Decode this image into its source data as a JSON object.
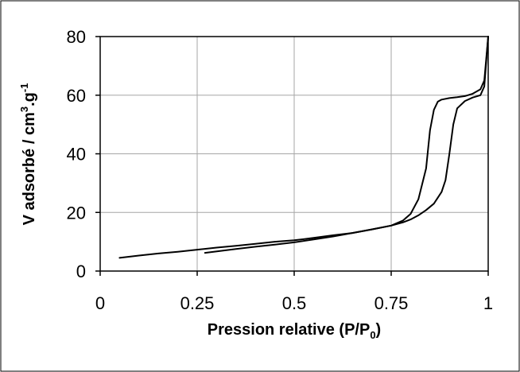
{
  "chart_data": {
    "type": "line",
    "title": "",
    "xlabel": "Pression relative (P/P",
    "xlabel_sub": "0",
    "xlabel_end": ")",
    "ylabel": "V adsorbé / cm",
    "ylabel_sup1": "3",
    "ylabel_mid": ".g",
    "ylabel_sup2": "-1",
    "xlim": [
      0,
      1
    ],
    "ylim": [
      0,
      80
    ],
    "grid": true,
    "legend": "none",
    "x_ticks": [
      0,
      0.25,
      0.5,
      0.75,
      1
    ],
    "x_tick_labels": [
      "0",
      "0.25",
      "0.5",
      "0.75",
      "1"
    ],
    "y_ticks": [
      0,
      20,
      40,
      60,
      80
    ],
    "y_tick_labels": [
      "0",
      "20",
      "40",
      "60",
      "80"
    ],
    "line_color": "#000000",
    "series": [
      {
        "x": [
          0.05,
          0.1,
          0.15,
          0.2,
          0.25,
          0.3,
          0.35,
          0.4,
          0.45,
          0.5,
          0.55,
          0.6,
          0.65,
          0.7,
          0.75,
          0.78,
          0.8,
          0.82,
          0.84,
          0.85,
          0.86,
          0.87,
          0.88,
          0.9,
          0.92,
          0.94,
          0.96,
          0.98,
          0.99,
          1.0
        ],
        "values": [
          4.5,
          5.3,
          6.0,
          6.6,
          7.3,
          8.0,
          8.6,
          9.3,
          10.0,
          10.5,
          11.3,
          12.2,
          13.0,
          14.2,
          15.5,
          17.2,
          19.5,
          24.5,
          35.0,
          48.0,
          55.0,
          57.8,
          58.5,
          59.0,
          59.3,
          59.7,
          60.5,
          62.0,
          65.0,
          80.0
        ]
      },
      {
        "x": [
          0.27,
          0.35,
          0.4,
          0.45,
          0.5,
          0.55,
          0.6,
          0.65,
          0.7,
          0.75,
          0.78,
          0.8,
          0.82,
          0.84,
          0.86,
          0.88,
          0.89,
          0.9,
          0.91,
          0.92,
          0.94,
          0.96,
          0.98,
          0.99,
          1.0
        ],
        "values": [
          6.2,
          7.5,
          8.3,
          9.0,
          9.8,
          10.8,
          11.8,
          13.0,
          14.2,
          15.5,
          16.6,
          17.6,
          19.0,
          20.8,
          23.0,
          27.0,
          31.0,
          40.0,
          50.0,
          55.5,
          58.0,
          59.2,
          60.0,
          63.0,
          80.0
        ]
      }
    ]
  }
}
